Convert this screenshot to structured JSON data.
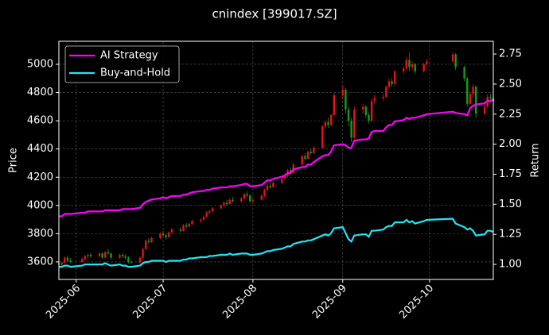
{
  "chart_data": {
    "type": "candlestick",
    "title": "cnindex [399017.SZ]",
    "ylabel": "Price",
    "y2label": "Return",
    "x": [
      "2025-05-26",
      "2025-05-27",
      "2025-05-28",
      "2025-05-29",
      "2025-05-30",
      "2025-06-03",
      "2025-06-04",
      "2025-06-05",
      "2025-06-06",
      "2025-06-09",
      "2025-06-10",
      "2025-06-11",
      "2025-06-12",
      "2025-06-13",
      "2025-06-16",
      "2025-06-17",
      "2025-06-18",
      "2025-06-19",
      "2025-06-20",
      "2025-06-23",
      "2025-06-24",
      "2025-06-25",
      "2025-06-26",
      "2025-06-27",
      "2025-06-30",
      "2025-07-01",
      "2025-07-02",
      "2025-07-03",
      "2025-07-04",
      "2025-07-07",
      "2025-07-08",
      "2025-07-09",
      "2025-07-10",
      "2025-07-11",
      "2025-07-14",
      "2025-07-15",
      "2025-07-16",
      "2025-07-17",
      "2025-07-18",
      "2025-07-21",
      "2025-07-22",
      "2025-07-23",
      "2025-07-24",
      "2025-07-25",
      "2025-07-28",
      "2025-07-29",
      "2025-07-30",
      "2025-07-31",
      "2025-08-01",
      "2025-08-04",
      "2025-08-05",
      "2025-08-06",
      "2025-08-07",
      "2025-08-08",
      "2025-08-11",
      "2025-08-12",
      "2025-08-13",
      "2025-08-14",
      "2025-08-15",
      "2025-08-18",
      "2025-08-19",
      "2025-08-20",
      "2025-08-21",
      "2025-08-22",
      "2025-08-25",
      "2025-08-26",
      "2025-08-27",
      "2025-08-28",
      "2025-08-29",
      "2025-09-01",
      "2025-09-02",
      "2025-09-03",
      "2025-09-04",
      "2025-09-05",
      "2025-09-08",
      "2025-09-09",
      "2025-09-10",
      "2025-09-11",
      "2025-09-12",
      "2025-09-15",
      "2025-09-16",
      "2025-09-17",
      "2025-09-18",
      "2025-09-19",
      "2025-09-22",
      "2025-09-23",
      "2025-09-24",
      "2025-09-25",
      "2025-09-26",
      "2025-09-29",
      "2025-09-30",
      "2025-10-09",
      "2025-10-10",
      "2025-10-13",
      "2025-10-14",
      "2025-10-15",
      "2025-10-16",
      "2025-10-17",
      "2025-10-20",
      "2025-10-21",
      "2025-10-22",
      "2025-10-23"
    ],
    "open": [
      3590,
      3580,
      3595,
      3630,
      3610,
      3600,
      3620,
      3640,
      3650,
      3640,
      3660,
      3630,
      3670,
      3660,
      3630,
      3650,
      3640,
      3630,
      3600,
      3595,
      3630,
      3690,
      3750,
      3740,
      3770,
      3800,
      3790,
      3775,
      3810,
      3830,
      3820,
      3860,
      3850,
      3870,
      3890,
      3900,
      3920,
      3950,
      3960,
      3980,
      4000,
      4020,
      4010,
      4040,
      4030,
      4050,
      4080,
      4070,
      4030,
      4040,
      4070,
      4110,
      4140,
      4130,
      4160,
      4190,
      4210,
      4250,
      4230,
      4290,
      4350,
      4330,
      4380,
      4370,
      4410,
      4560,
      4590,
      4570,
      4640,
      4780,
      4820,
      4680,
      4600,
      4480,
      4680,
      4700,
      4640,
      4600,
      4740,
      4760,
      4770,
      4840,
      4880,
      4860,
      4950,
      4970,
      5030,
      4980,
      5000,
      4950,
      5000,
      5020,
      5070,
      4980,
      4900,
      4720,
      4790,
      4840,
      4650,
      4700,
      4770,
      4760
    ],
    "high": [
      3605,
      3600,
      3640,
      3645,
      3625,
      3630,
      3650,
      3660,
      3665,
      3670,
      3670,
      3675,
      3690,
      3665,
      3660,
      3660,
      3655,
      3640,
      3615,
      3640,
      3700,
      3760,
      3770,
      3780,
      3810,
      3820,
      3800,
      3815,
      3840,
      3845,
      3870,
      3875,
      3880,
      3900,
      3910,
      3930,
      3960,
      3970,
      3990,
      4010,
      4030,
      4040,
      4050,
      4060,
      4060,
      4090,
      4100,
      4080,
      4050,
      4080,
      4120,
      4150,
      4160,
      4170,
      4200,
      4220,
      4260,
      4270,
      4300,
      4360,
      4370,
      4390,
      4400,
      4420,
      4570,
      4600,
      4620,
      4650,
      4800,
      4850,
      4830,
      4700,
      4620,
      4700,
      4720,
      4710,
      4660,
      4760,
      4780,
      4790,
      4850,
      4900,
      4900,
      4960,
      4990,
      5050,
      5080,
      5020,
      5010,
      5010,
      5040,
      5090,
      5080,
      4990,
      4910,
      4800,
      4860,
      4850,
      4720,
      4790,
      4790,
      4770
    ],
    "low": [
      3570,
      3565,
      3590,
      3600,
      3590,
      3595,
      3610,
      3625,
      3630,
      3635,
      3620,
      3625,
      3650,
      3620,
      3620,
      3630,
      3620,
      3590,
      3585,
      3590,
      3625,
      3685,
      3730,
      3735,
      3760,
      3780,
      3760,
      3770,
      3800,
      3810,
      3815,
      3840,
      3845,
      3860,
      3875,
      3890,
      3915,
      3935,
      3950,
      3970,
      3990,
      4000,
      4005,
      4020,
      4020,
      4040,
      4060,
      4020,
      4010,
      4035,
      4060,
      4100,
      4120,
      4125,
      4150,
      4180,
      4200,
      4220,
      4225,
      4285,
      4320,
      4325,
      4360,
      4365,
      4400,
      4540,
      4550,
      4560,
      4630,
      4760,
      4650,
      4560,
      4450,
      4470,
      4650,
      4620,
      4580,
      4590,
      4720,
      4740,
      4760,
      4830,
      4840,
      4850,
      4930,
      4960,
      4950,
      4960,
      4930,
      4940,
      4990,
      5010,
      4960,
      4880,
      4700,
      4710,
      4770,
      4620,
      4640,
      4690,
      4740,
      4720
    ],
    "close": [
      3580,
      3595,
      3630,
      3610,
      3600,
      3620,
      3640,
      3650,
      3640,
      3660,
      3630,
      3670,
      3660,
      3630,
      3650,
      3640,
      3630,
      3600,
      3595,
      3630,
      3690,
      3750,
      3740,
      3770,
      3800,
      3790,
      3775,
      3810,
      3830,
      3820,
      3860,
      3850,
      3870,
      3890,
      3900,
      3920,
      3950,
      3960,
      3980,
      4000,
      4020,
      4010,
      4040,
      4030,
      4050,
      4080,
      4070,
      4030,
      4040,
      4070,
      4110,
      4140,
      4130,
      4160,
      4190,
      4210,
      4250,
      4230,
      4290,
      4350,
      4330,
      4380,
      4370,
      4410,
      4560,
      4590,
      4570,
      4640,
      4780,
      4820,
      4680,
      4600,
      4480,
      4680,
      4700,
      4640,
      4600,
      4740,
      4760,
      4770,
      4840,
      4880,
      4860,
      4950,
      4970,
      5030,
      4980,
      5000,
      4950,
      5000,
      5020,
      5070,
      4980,
      4900,
      4720,
      4790,
      4840,
      4650,
      4700,
      4770,
      4760,
      4740
    ],
    "up_color": "#e8101a",
    "down_color": "#1a9a1a",
    "series": [
      {
        "name": "AI Strategy",
        "color": "#ff00ff",
        "axis": "y2",
        "values": [
          1.4,
          1.4,
          1.42,
          1.42,
          1.42,
          1.43,
          1.43,
          1.44,
          1.44,
          1.44,
          1.44,
          1.45,
          1.45,
          1.45,
          1.45,
          1.46,
          1.46,
          1.46,
          1.46,
          1.47,
          1.5,
          1.52,
          1.53,
          1.54,
          1.55,
          1.56,
          1.55,
          1.56,
          1.57,
          1.57,
          1.58,
          1.58,
          1.59,
          1.6,
          1.61,
          1.61,
          1.62,
          1.62,
          1.63,
          1.64,
          1.64,
          1.64,
          1.65,
          1.65,
          1.66,
          1.67,
          1.67,
          1.65,
          1.65,
          1.66,
          1.68,
          1.7,
          1.7,
          1.71,
          1.73,
          1.74,
          1.76,
          1.76,
          1.79,
          1.81,
          1.81,
          1.83,
          1.83,
          1.85,
          1.9,
          1.91,
          1.91,
          1.94,
          1.99,
          2.0,
          1.99,
          1.97,
          1.97,
          2.03,
          2.04,
          2.04,
          2.05,
          2.1,
          2.11,
          2.11,
          2.14,
          2.16,
          2.16,
          2.19,
          2.2,
          2.22,
          2.21,
          2.22,
          2.22,
          2.24,
          2.25,
          2.27,
          2.26,
          2.25,
          2.24,
          2.3,
          2.32,
          2.33,
          2.34,
          2.36,
          2.36,
          2.37
        ]
      },
      {
        "name": "Buy-and-Hold",
        "color": "#22e5f2",
        "axis": "y2",
        "values": [
          0.98,
          0.98,
          0.99,
          0.99,
          0.98,
          0.99,
          1.0,
          1.0,
          1.0,
          1.0,
          1.0,
          1.01,
          1.0,
          0.99,
          1.0,
          0.99,
          0.99,
          0.98,
          0.98,
          0.99,
          1.01,
          1.02,
          1.02,
          1.03,
          1.03,
          1.03,
          1.02,
          1.03,
          1.03,
          1.03,
          1.04,
          1.04,
          1.05,
          1.05,
          1.06,
          1.06,
          1.06,
          1.07,
          1.07,
          1.08,
          1.08,
          1.08,
          1.09,
          1.08,
          1.09,
          1.09,
          1.09,
          1.08,
          1.08,
          1.09,
          1.1,
          1.11,
          1.11,
          1.12,
          1.13,
          1.14,
          1.15,
          1.15,
          1.17,
          1.19,
          1.19,
          1.2,
          1.2,
          1.21,
          1.24,
          1.25,
          1.24,
          1.26,
          1.3,
          1.31,
          1.26,
          1.21,
          1.19,
          1.24,
          1.25,
          1.25,
          1.23,
          1.28,
          1.28,
          1.29,
          1.31,
          1.32,
          1.32,
          1.35,
          1.35,
          1.37,
          1.35,
          1.36,
          1.34,
          1.36,
          1.37,
          1.38,
          1.34,
          1.31,
          1.29,
          1.3,
          1.28,
          1.24,
          1.25,
          1.28,
          1.28,
          1.27
        ]
      }
    ],
    "xlim": [
      "2025-05-26",
      "2025-10-23"
    ],
    "xticks": [
      {
        "value": "2025-06-01",
        "label": "2025-06"
      },
      {
        "value": "2025-07-01",
        "label": "2025-07"
      },
      {
        "value": "2025-08-01",
        "label": "2025-08"
      },
      {
        "value": "2025-09-01",
        "label": "2025-09"
      },
      {
        "value": "2025-10-01",
        "label": "2025-10"
      }
    ],
    "ylim": [
      3476,
      5163
    ],
    "yticks": [
      3600,
      3800,
      4000,
      4200,
      4400,
      4600,
      4800,
      5000
    ],
    "y2lim": [
      0.875,
      2.856
    ],
    "y2ticks": [
      {
        "value": 1,
        "label": "1.00"
      },
      1.25,
      {
        "value": 1.5,
        "label": "1.50"
      },
      1.75,
      {
        "value": 2,
        "label": "2.00"
      },
      2.25,
      {
        "value": 2.5,
        "label": "2.50"
      },
      2.75
    ],
    "grid": true,
    "legend": "upper left"
  }
}
